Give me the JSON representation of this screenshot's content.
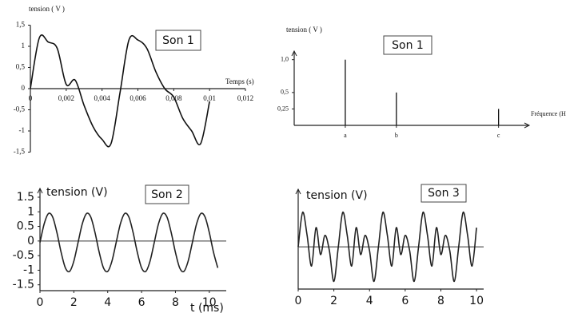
{
  "chart_data": [
    {
      "type": "line",
      "annotation": "Son 1",
      "ylabel": "tension ( V )",
      "xlabel": "Temps (s)",
      "x": [
        0,
        0.0005,
        0.001,
        0.0015,
        0.002,
        0.0025,
        0.003,
        0.0035,
        0.004,
        0.0045,
        0.005,
        0.0055,
        0.006,
        0.0065,
        0.007,
        0.0075,
        0.008,
        0.0085,
        0.009,
        0.0095,
        0.01
      ],
      "series": [
        {
          "color": "#111111",
          "values": [
            0.0,
            1.2,
            1.1,
            0.95,
            0.1,
            0.2,
            -0.4,
            -0.9,
            -1.2,
            -1.3,
            -0.1,
            1.15,
            1.15,
            0.95,
            0.4,
            0.0,
            -0.2,
            -0.7,
            -1.0,
            -1.3,
            -0.3
          ]
        }
      ],
      "xlim": [
        0,
        0.012
      ],
      "ylim": [
        -1.5,
        1.5
      ],
      "xticks": [
        0,
        {
          "value": 0.002,
          "label": "0,002"
        },
        {
          "value": 0.004,
          "label": "0,004"
        },
        {
          "value": 0.006,
          "label": "0,006"
        },
        {
          "value": 0.008,
          "label": "0,008"
        },
        {
          "value": 0.01,
          "label": "0,01"
        },
        {
          "value": 0.012,
          "label": "0,012"
        }
      ],
      "yticks": [
        {
          "value": 1.5,
          "label": "1,5"
        },
        1,
        {
          "value": 0.5,
          "label": "0,5"
        },
        0,
        {
          "value": -0.5,
          "label": "-0,5"
        },
        -1,
        {
          "value": -1.5,
          "label": "-1,5"
        }
      ]
    },
    {
      "type": "stem",
      "annotation": "Son 1",
      "ylabel": "tension ( V )",
      "xlabel": "Fréquence (Hz)",
      "x": [
        1,
        2,
        4
      ],
      "values": [
        1.0,
        0.5,
        0.25
      ],
      "color": "#111111",
      "xlim": [
        0,
        4.6
      ],
      "ylim": [
        0,
        1.13
      ],
      "xticks": [
        {
          "value": 1,
          "label": "a"
        },
        {
          "value": 2,
          "label": "b"
        },
        {
          "value": 4,
          "label": "c"
        }
      ],
      "yticks": [
        {
          "value": 1.0,
          "label": "1,0"
        },
        {
          "value": 0.5,
          "label": "0,5"
        },
        {
          "value": 0.25,
          "label": "0,25"
        }
      ]
    },
    {
      "type": "line",
      "annotation": "Son 2",
      "ylabel": "tension (V)",
      "xlabel": "t (ms)",
      "x": [
        0,
        0.25,
        0.5,
        0.75,
        1,
        1.25,
        1.5,
        1.75,
        2,
        2.25,
        2.5,
        2.75,
        3,
        3.25,
        3.5,
        3.75,
        4,
        4.25,
        4.5,
        4.75,
        5,
        5.25,
        5.5,
        5.75,
        6,
        6.25,
        6.5,
        6.75,
        7,
        7.25,
        7.5,
        7.75,
        8,
        8.25,
        8.5,
        8.75,
        9,
        9.25,
        9.5,
        9.75,
        10,
        10.25,
        10.5
      ],
      "series": [
        {
          "color": "#222222",
          "values": [
            -0.05,
            0.59,
            0.94,
            0.82,
            0.29,
            -0.39,
            -0.92,
            -1.04,
            -0.69,
            -0.05,
            0.59,
            0.94,
            0.82,
            0.29,
            -0.39,
            -0.92,
            -1.04,
            -0.69,
            -0.05,
            0.59,
            0.94,
            0.82,
            0.29,
            -0.39,
            -0.92,
            -1.04,
            -0.69,
            -0.05,
            0.59,
            0.94,
            0.82,
            0.29,
            -0.39,
            -0.92,
            -1.04,
            -0.69,
            -0.05,
            0.59,
            0.94,
            0.82,
            0.29,
            -0.39,
            -0.92
          ]
        }
      ],
      "xlim": [
        0,
        11
      ],
      "ylim": [
        -1.7,
        1.8
      ],
      "xticks": [
        0,
        2,
        4,
        6,
        8,
        10
      ],
      "yticks": [
        1.5,
        1,
        0.5,
        0,
        -0.5,
        -1,
        -1.5
      ]
    },
    {
      "type": "line",
      "annotation": "Son 3",
      "ylabel": "tension (V)",
      "x": [
        0,
        0.25,
        0.5,
        0.75,
        1,
        1.25,
        1.5,
        1.75,
        2,
        2.25,
        2.5,
        2.75,
        3,
        3.25,
        3.5,
        3.75,
        4,
        4.25,
        4.5,
        4.75,
        5,
        5.25,
        5.5,
        5.75,
        6,
        6.25,
        6.5,
        6.75,
        7,
        7.25,
        7.5,
        7.75,
        8,
        8.25,
        8.5,
        8.75,
        9,
        9.25,
        9.5,
        9.75,
        10
      ],
      "series": [
        {
          "color": "#222222",
          "values": [
            0.0,
            0.9,
            0.3,
            -0.5,
            0.5,
            -0.2,
            0.3,
            -0.1,
            -0.9,
            0.0,
            0.9,
            0.3,
            -0.5,
            0.5,
            -0.2,
            0.3,
            -0.1,
            -0.9,
            0.0,
            0.9,
            0.3,
            -0.5,
            0.5,
            -0.2,
            0.3,
            -0.1,
            -0.9,
            0.0,
            0.9,
            0.3,
            -0.5,
            0.5,
            -0.2,
            0.3,
            -0.1,
            -0.9,
            0.0,
            0.9,
            0.3,
            -0.5,
            0.5
          ]
        }
      ],
      "xlim": [
        0,
        10.4
      ],
      "ylim": [
        -1.1,
        1.5
      ],
      "xticks": [
        0,
        2,
        4,
        6,
        8,
        10
      ]
    }
  ]
}
